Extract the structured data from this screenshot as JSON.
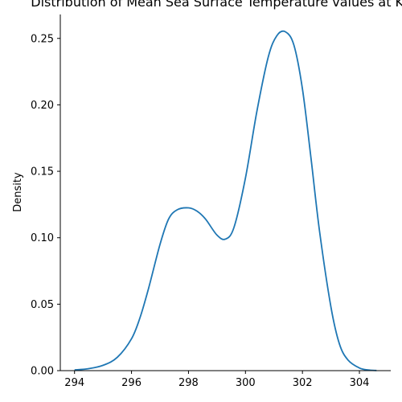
{
  "chart_data": {
    "type": "line",
    "title": "Distribution of Mean Sea Surface Temperature values at Kan",
    "xlabel": "",
    "ylabel": "Density",
    "xlim": [
      293.5,
      305.1
    ],
    "ylim": [
      0.0,
      0.268
    ],
    "xticks": [
      294,
      296,
      298,
      300,
      302,
      304
    ],
    "yticks": [
      0.0,
      0.05,
      0.1,
      0.15,
      0.2,
      0.25
    ],
    "ytick_labels": [
      "0.00",
      "0.05",
      "0.10",
      "0.15",
      "0.20",
      "0.25"
    ],
    "grid": false,
    "series": [
      {
        "x": [
          294.0,
          294.5,
          295.0,
          295.5,
          296.0,
          296.3,
          296.6,
          297.0,
          297.3,
          297.6,
          298.0,
          298.3,
          298.6,
          299.0,
          299.3,
          299.6,
          300.0,
          300.4,
          300.8,
          301.1,
          301.4,
          301.7,
          302.0,
          302.3,
          302.6,
          303.0,
          303.3,
          303.6,
          304.0,
          304.3,
          304.6
        ],
        "y": [
          0.0005,
          0.0015,
          0.004,
          0.01,
          0.024,
          0.04,
          0.062,
          0.095,
          0.114,
          0.121,
          0.1225,
          0.12,
          0.114,
          0.102,
          0.099,
          0.108,
          0.145,
          0.195,
          0.236,
          0.252,
          0.255,
          0.245,
          0.212,
          0.16,
          0.105,
          0.048,
          0.02,
          0.008,
          0.002,
          0.0005,
          0.0001
        ]
      }
    ],
    "colors": {
      "line": "#1f77b4",
      "axis": "#000000"
    }
  }
}
